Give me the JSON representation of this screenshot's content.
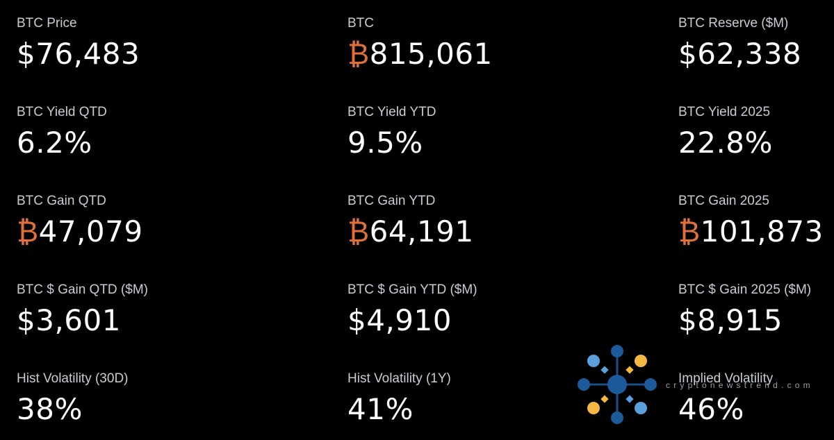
{
  "metrics": [
    {
      "label": "BTC Price",
      "value": "$76,483"
    },
    {
      "label": "BTC",
      "symbol": "₿",
      "value": "815,061"
    },
    {
      "label": "BTC Reserve ($M)",
      "value": "$62,338"
    },
    {
      "label": "BTC Yield QTD",
      "value": "6.2%"
    },
    {
      "label": "BTC Yield YTD",
      "value": "9.5%"
    },
    {
      "label": "BTC Yield 2025",
      "value": "22.8%"
    },
    {
      "label": "BTC Gain QTD",
      "symbol": "₿",
      "value": "47,079"
    },
    {
      "label": "BTC Gain YTD",
      "symbol": "₿",
      "value": "64,191"
    },
    {
      "label": "BTC Gain 2025",
      "symbol": "₿",
      "value": "101,873"
    },
    {
      "label": "BTC $ Gain QTD ($M)",
      "value": "$3,601"
    },
    {
      "label": "BTC $ Gain YTD ($M)",
      "value": "$4,910"
    },
    {
      "label": "BTC $ Gain 2025 ($M)",
      "value": "$8,915"
    },
    {
      "label": "Hist Volatility (30D)",
      "value": "38%"
    },
    {
      "label": "Hist Volatility (1Y)",
      "value": "41%"
    },
    {
      "label": "Implied Volatility",
      "value": "46%"
    }
  ],
  "watermark": "cryptonewstrend.com"
}
